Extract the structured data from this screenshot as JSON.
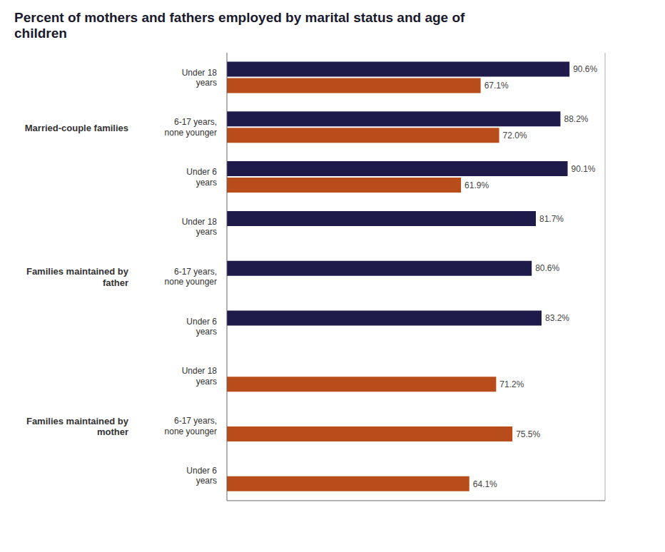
{
  "chart_data": {
    "type": "bar",
    "orientation": "horizontal",
    "title": "Percent of mothers and fathers employed by marital status and age of\nchildren",
    "categories": [
      "Under 18\nyears",
      "6-17 years,\nnone younger",
      "Under 6\nyears",
      "Under 18\nyears",
      "6-17 years,\nnone younger",
      "Under 6\nyears",
      "Under 18\nyears",
      "6-17 years,\nnone younger",
      "Under 6\nyears"
    ],
    "category_groups": [
      "Married-couple families",
      "Married-couple families",
      "Married-couple families",
      "Families maintained by\nfather",
      "Families maintained by\nfather",
      "Families maintained by\nfather",
      "Families maintained by\nmother",
      "Families maintained by\nmother",
      "Families maintained by\nmother"
    ],
    "series": [
      {
        "color": "#1e1b4b",
        "values": [
          90.6,
          88.2,
          90.1,
          81.7,
          80.6,
          83.2,
          null,
          null,
          null
        ],
        "value_labels": [
          "90.6%",
          "88.2%",
          "90.1%",
          "81.7%",
          "80.6%",
          "83.2%",
          null,
          null,
          null
        ]
      },
      {
        "color": "#b84c1a",
        "values": [
          67.1,
          72.0,
          61.9,
          null,
          null,
          null,
          71.2,
          75.5,
          64.1
        ],
        "value_labels": [
          "67.1%",
          "72.0%",
          "61.9%",
          null,
          null,
          null,
          "71.2%",
          "75.5%",
          "64.1%"
        ]
      }
    ],
    "xlim": [
      0,
      100
    ],
    "data_labels": true,
    "tick_labels": "y",
    "grid": false
  }
}
